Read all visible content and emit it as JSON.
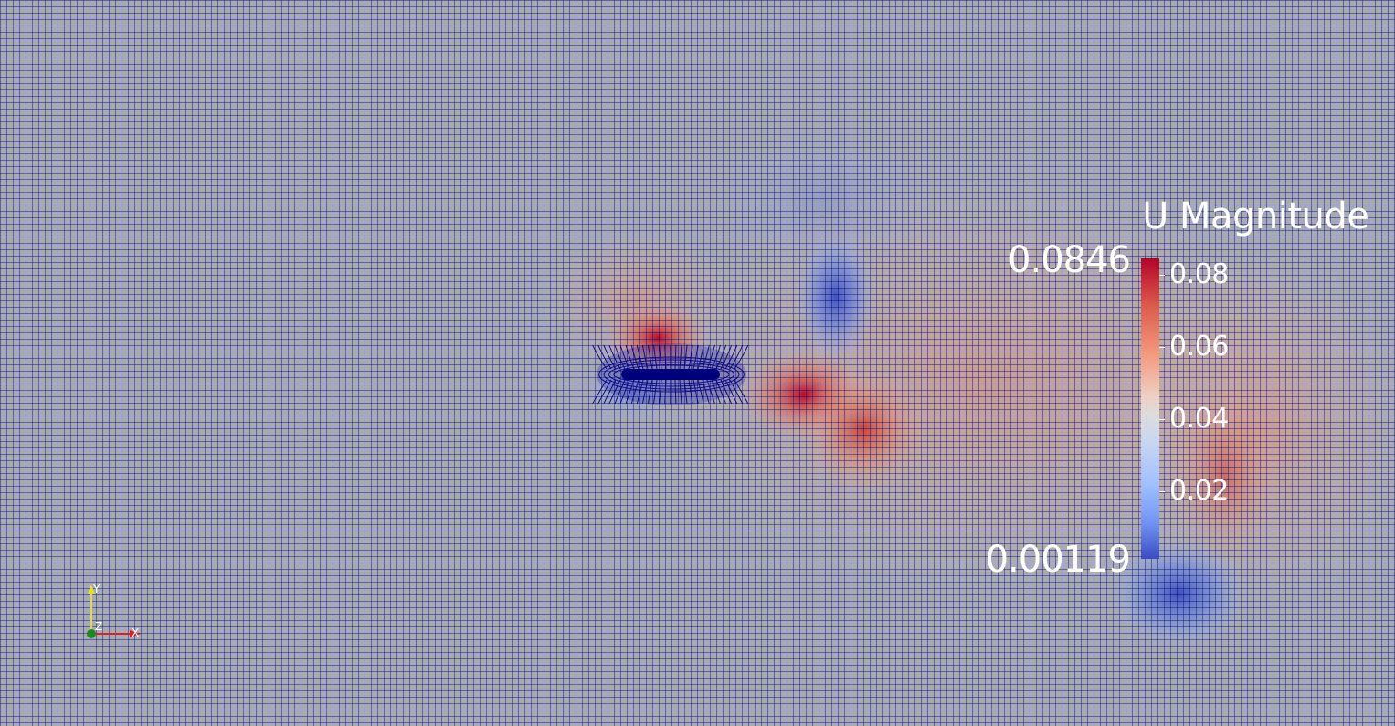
{
  "legend": {
    "title": "U Magnitude",
    "range_max": "0.0846",
    "range_min": "0.00119",
    "ticks": [
      "0.08",
      "0.06",
      "0.04",
      "0.02"
    ],
    "tick_values": [
      0.08,
      0.06,
      0.04,
      0.02
    ],
    "range": [
      0.00119,
      0.0846
    ],
    "colormap": [
      "#3b4cc0",
      "#dddcdc",
      "#b40426"
    ]
  },
  "orientation_axes": {
    "x_label": "X",
    "y_label": "Y",
    "z_label": "Z",
    "x_color": "#e02020",
    "y_color": "#e6e020",
    "z_color": "#1a8a1a"
  },
  "mesh": {
    "line_color": "#00007a",
    "background_color": "#9ea4b0"
  }
}
